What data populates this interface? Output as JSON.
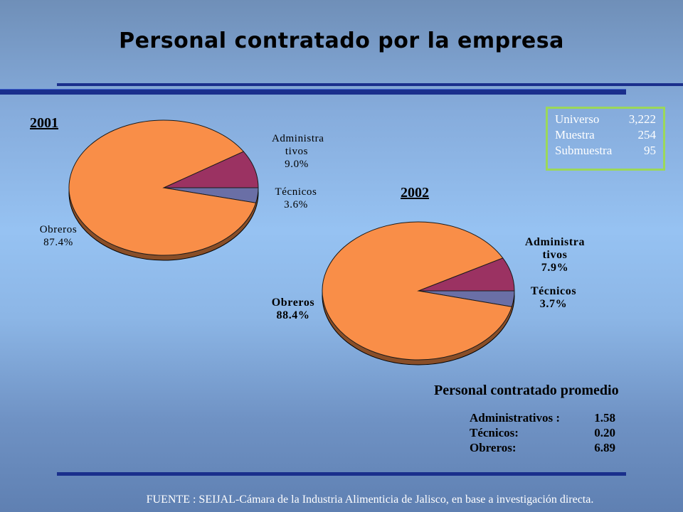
{
  "title": "Personal contratado por la empresa",
  "chart_data": [
    {
      "type": "pie",
      "title": "2001",
      "categories": [
        "Administra tivos",
        "Técnicos",
        "Obreros"
      ],
      "values": [
        9.0,
        3.6,
        87.4
      ],
      "labels": [
        "9.0%",
        "3.6%",
        "87.4%"
      ],
      "colors": [
        "#9b3262",
        "#6a6fa6",
        "#f98e48"
      ]
    },
    {
      "type": "pie",
      "title": "2002",
      "categories": [
        "Administra tivos",
        "Técnicos",
        "Obreros"
      ],
      "values": [
        7.9,
        3.7,
        88.4
      ],
      "labels": [
        "7.9%",
        "3.7%",
        "88.4%"
      ],
      "colors": [
        "#9b3262",
        "#6a6fa6",
        "#f98e48"
      ]
    }
  ],
  "info_box": {
    "rows": [
      {
        "label": "Universo",
        "value": "3,222"
      },
      {
        "label": "Muestra",
        "value": "254"
      },
      {
        "label": "Submuestra",
        "value": "95"
      }
    ],
    "border_color": "#9bd85a"
  },
  "average": {
    "title": "Personal contratado promedio",
    "rows": [
      {
        "label": "Administrativos :",
        "value": "1.58"
      },
      {
        "label": "Técnicos:",
        "value": "0.20"
      },
      {
        "label": "Obreros:",
        "value": "6.89"
      }
    ]
  },
  "source": "FUENTE : SEIJAL-Cámara de la Industria Alimenticia de Jalisco,  en base a investigación directa."
}
